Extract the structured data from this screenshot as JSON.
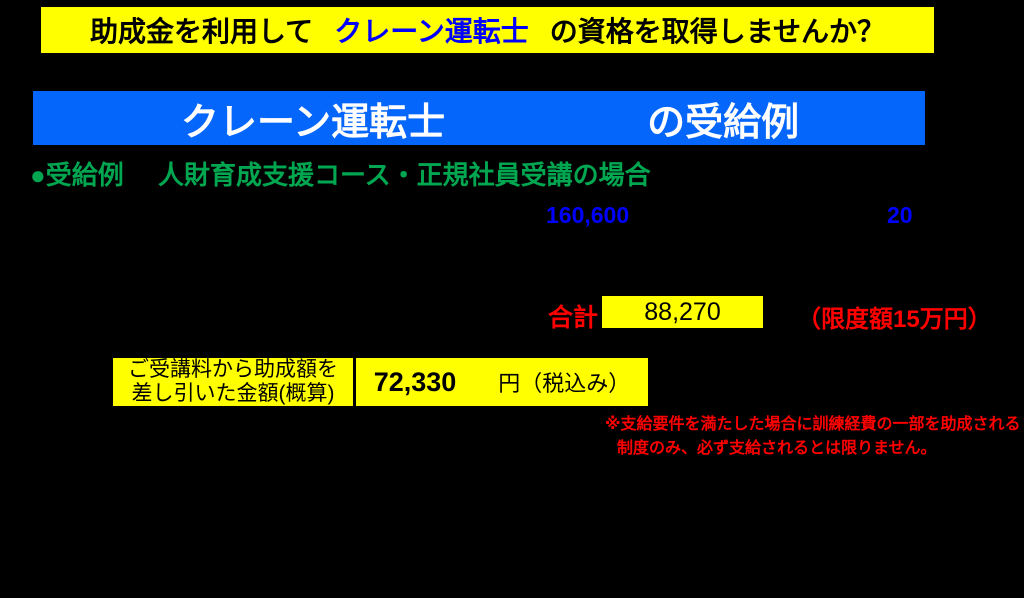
{
  "colors": {
    "page_bg": "#000000",
    "banner_yellow": "#FFFF00",
    "banner_blue": "#0566FB",
    "text_blue": "#0000FF",
    "text_green": "#00A650",
    "text_red": "#FF0000",
    "text_white": "#FFFFFF",
    "text_black": "#000000"
  },
  "top_banner": {
    "text_before": "助成金を利用して",
    "qualification": "クレーン運転士",
    "text_after": "の資格を取得しませんか？"
  },
  "title_banner": {
    "qualification": "クレーン運転士",
    "suffix": "の受給例"
  },
  "example_heading": {
    "bullet_label": "●受給例",
    "course_label": "人財育成支援コース・正規社員受講の場合"
  },
  "figures": {
    "amount_left": "160,600",
    "amount_right": "20"
  },
  "total_row": {
    "label": "合計",
    "amount": "88,270",
    "limit_note": "（限度額15万円）"
  },
  "result_table": {
    "label_line1": "ご受講料から助成額を",
    "label_line2": "差し引いた金額(概算)",
    "amount": "72,330",
    "unit": "円（税込み）"
  },
  "disclaimer": {
    "line1": "※支給要件を満たした場合に訓練経費の一部を助成される",
    "line2": "制度のみ、必ず支給されるとは限りません。"
  }
}
